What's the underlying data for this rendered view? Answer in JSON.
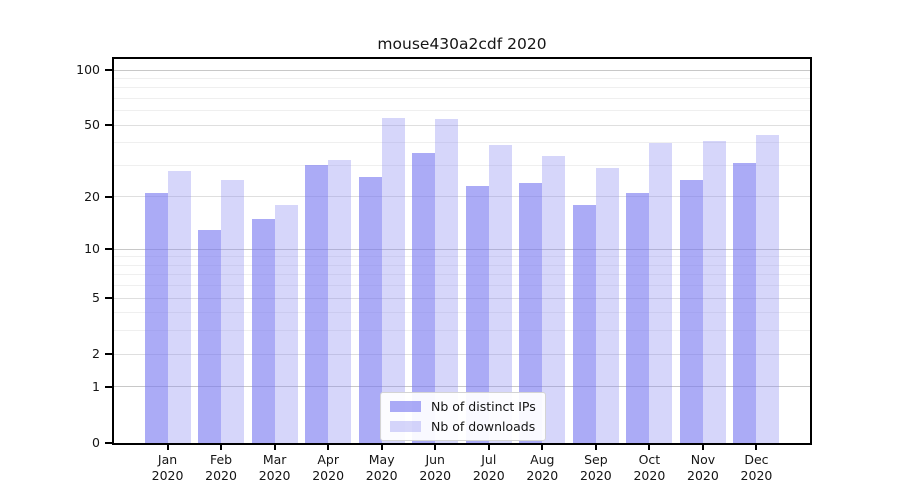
{
  "chart_data": {
    "type": "bar",
    "title": "mouse430a2cdf 2020",
    "xlabel": "",
    "ylabel": "",
    "year": "2020",
    "categories": [
      "Jan",
      "Feb",
      "Mar",
      "Apr",
      "May",
      "Jun",
      "Jul",
      "Aug",
      "Sep",
      "Oct",
      "Nov",
      "Dec"
    ],
    "series": [
      {
        "name": "Nb of distinct IPs",
        "values": [
          21,
          13,
          15,
          30,
          26,
          35,
          23,
          24,
          18,
          21,
          25,
          31
        ],
        "color": "#7878f0",
        "alpha": 0.62
      },
      {
        "name": "Nb of downloads",
        "values": [
          28,
          25,
          18,
          32,
          55,
          54,
          39,
          34,
          29,
          40,
          41,
          44
        ],
        "color": "#8a8af2",
        "alpha": 0.35
      }
    ],
    "yscale": "log1p",
    "yticks": [
      0,
      1,
      2,
      5,
      10,
      20,
      50,
      100
    ],
    "yticks_minor": [
      3,
      4,
      6,
      7,
      8,
      9,
      30,
      40,
      60,
      70,
      80,
      90
    ],
    "ylim": [
      0,
      115
    ],
    "grid": "horizontal",
    "legend_position": "lower-center-inside"
  },
  "colors": {
    "grid_major_decade": "#c8c8c8",
    "grid_major": "#dfdfdf",
    "grid_minor": "#efefef",
    "spine": "#000000",
    "text": "#151515",
    "legend_border": "#d4d4d4",
    "legend_bg": "#ffffff"
  }
}
